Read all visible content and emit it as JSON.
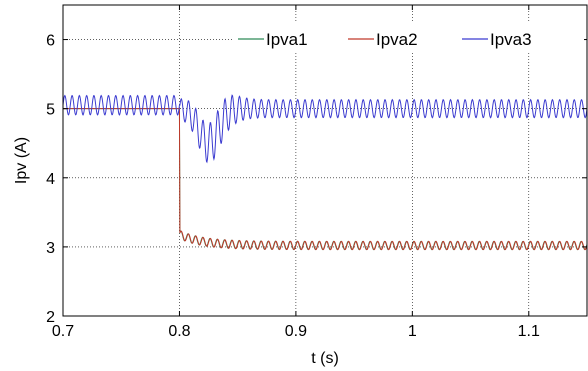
{
  "chart_data": {
    "type": "line",
    "xlabel": "t (s)",
    "ylabel": "Ipv (A)",
    "xlim": [
      0.7,
      1.15
    ],
    "ylim": [
      2,
      6.5
    ],
    "x_ticks": [
      0.7,
      0.8,
      0.9,
      1,
      1.1
    ],
    "x_tick_labels": [
      "0.7",
      "0.8",
      "0.9",
      "1",
      "1.1"
    ],
    "y_ticks": [
      2,
      3,
      4,
      5,
      6
    ],
    "y_tick_labels": [
      "2",
      "3",
      "4",
      "5",
      "6"
    ],
    "grid": true,
    "legend_position": "top-right",
    "series": [
      {
        "name": "Ipva1",
        "color": "#2e8b57"
      },
      {
        "name": "Ipva2",
        "color": "#c0392b"
      },
      {
        "name": "Ipva3",
        "color": "#3b3bd0"
      }
    ],
    "ipva3_shape": {
      "pre_step_mean": 5.05,
      "pre_step_amplitude": 0.14,
      "dip_min": 4.25,
      "dip_time": 0.825,
      "steady_mean": 5.0,
      "steady_amplitude": 0.13,
      "ripple_period": 0.00625
    },
    "ipva12_shape": {
      "pre_step_value": 5.0,
      "step_time": 0.8,
      "post_step_peak": 3.18,
      "steady_mean": 3.02,
      "steady_amplitude": 0.06,
      "ripple_period": 0.00625
    }
  }
}
